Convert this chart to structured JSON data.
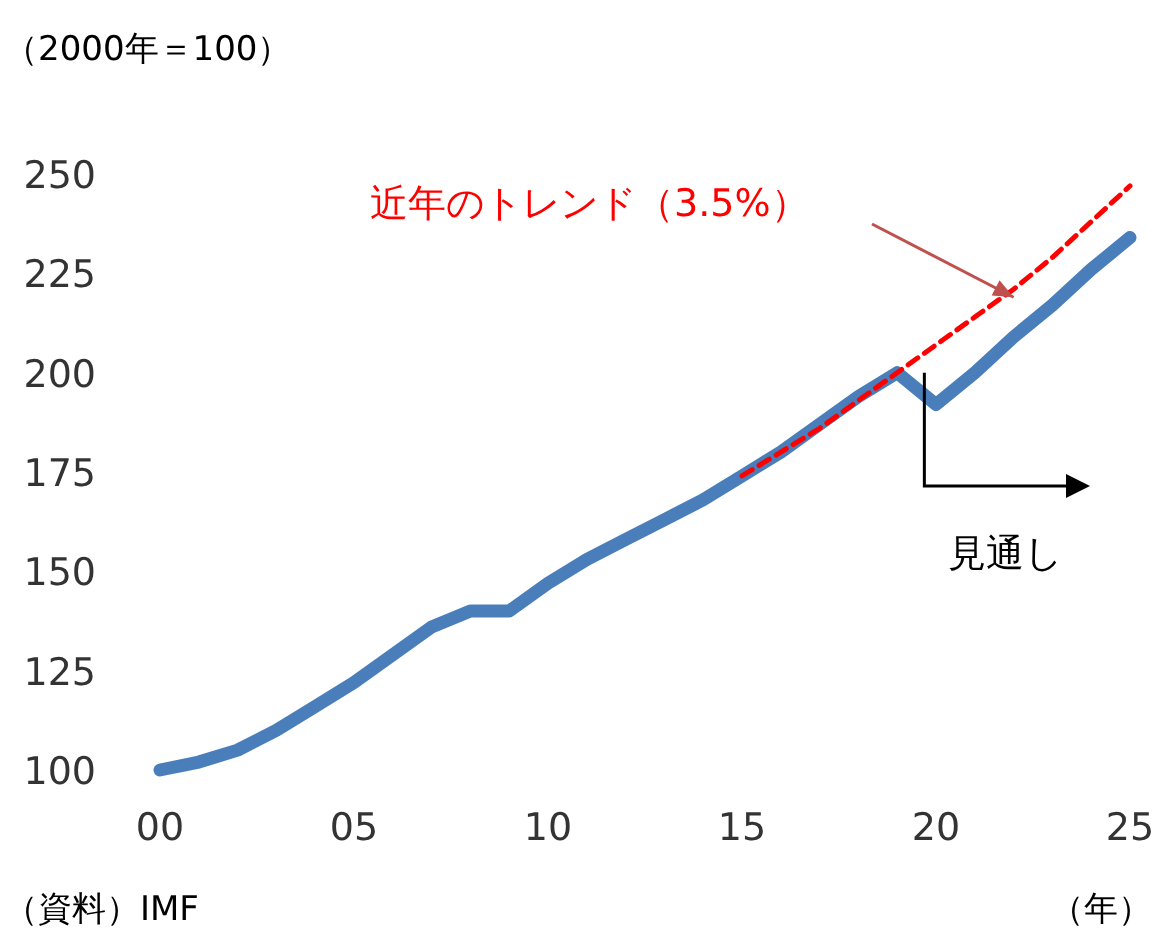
{
  "chart_data": {
    "type": "line",
    "title": "（2000年＝100）",
    "xlabel": "（年）",
    "x": [
      2000,
      2001,
      2002,
      2003,
      2004,
      2005,
      2006,
      2007,
      2008,
      2009,
      2010,
      2011,
      2012,
      2013,
      2014,
      2015,
      2016,
      2017,
      2018,
      2019,
      2020,
      2021,
      2022,
      2023,
      2024,
      2025
    ],
    "series": [
      {
        "color": "#4a7ebb",
        "values": [
          100,
          102,
          105,
          110,
          116,
          122,
          129,
          136,
          140,
          140,
          147,
          153,
          158,
          163,
          168,
          174,
          180,
          187,
          194,
          200,
          192,
          200,
          209,
          217,
          226,
          234
        ]
      },
      {
        "type": "line",
        "line_style": "dashed",
        "color": "#ff0000",
        "x": [
          2015,
          2016,
          2017,
          2018,
          2019,
          2020,
          2021,
          2022,
          2023,
          2024,
          2025
        ],
        "values": [
          174,
          180,
          186,
          193,
          200,
          207,
          214,
          221,
          229,
          238,
          247
        ]
      }
    ],
    "xlim": [
      2000,
      2025
    ],
    "ylim": [
      100,
      250
    ],
    "xticks": [
      {
        "value": 2000,
        "label": "00"
      },
      {
        "value": 2005,
        "label": "05"
      },
      {
        "value": 2010,
        "label": "10"
      },
      {
        "value": 2015,
        "label": "15"
      },
      {
        "value": 2020,
        "label": "20"
      },
      {
        "value": 2025,
        "label": "25"
      }
    ],
    "yticks": [
      100,
      125,
      150,
      175,
      200,
      225,
      250
    ],
    "grid": false,
    "marker": "none",
    "annotations": [
      "近年のトレンド（3.5%）",
      {
        "text": "見通し",
        "x": 2019.7,
        "y": 200
      },
      "（資料）IMF"
    ]
  }
}
